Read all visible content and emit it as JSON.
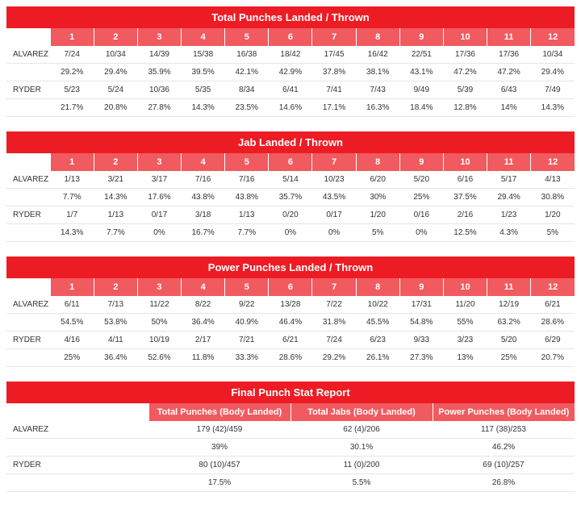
{
  "colors": {
    "title_bg": "#ed1c24",
    "header_bg": "#f15a5f",
    "row_border": "#e5e5e5",
    "text": "#333333",
    "bg": "#ffffff"
  },
  "rounds": [
    "1",
    "2",
    "3",
    "4",
    "5",
    "6",
    "7",
    "8",
    "9",
    "10",
    "11",
    "12"
  ],
  "tables": [
    {
      "title": "Total Punches Landed / Thrown",
      "fighters": [
        {
          "name": "ALVAREZ",
          "vals": [
            "7/24",
            "10/34",
            "14/39",
            "15/38",
            "16/38",
            "18/42",
            "17/45",
            "16/42",
            "22/51",
            "17/36",
            "17/36",
            "10/34"
          ],
          "pcts": [
            "29.2%",
            "29.4%",
            "35.9%",
            "39.5%",
            "42.1%",
            "42.9%",
            "37.8%",
            "38.1%",
            "43.1%",
            "47.2%",
            "47.2%",
            "29.4%"
          ]
        },
        {
          "name": "RYDER",
          "vals": [
            "5/23",
            "5/24",
            "10/36",
            "5/35",
            "8/34",
            "6/41",
            "7/41",
            "7/43",
            "9/49",
            "5/39",
            "6/43",
            "7/49"
          ],
          "pcts": [
            "21.7%",
            "20.8%",
            "27.8%",
            "14.3%",
            "23.5%",
            "14.6%",
            "17.1%",
            "16.3%",
            "18.4%",
            "12.8%",
            "14%",
            "14.3%"
          ]
        }
      ]
    },
    {
      "title": "Jab Landed / Thrown",
      "fighters": [
        {
          "name": "ALVAREZ",
          "vals": [
            "1/13",
            "3/21",
            "3/17",
            "7/16",
            "7/16",
            "5/14",
            "10/23",
            "6/20",
            "5/20",
            "6/16",
            "5/17",
            "4/13"
          ],
          "pcts": [
            "7.7%",
            "14.3%",
            "17.6%",
            "43.8%",
            "43.8%",
            "35.7%",
            "43.5%",
            "30%",
            "25%",
            "37.5%",
            "29.4%",
            "30.8%"
          ]
        },
        {
          "name": "RYDER",
          "vals": [
            "1/7",
            "1/13",
            "0/17",
            "3/18",
            "1/13",
            "0/20",
            "0/17",
            "1/20",
            "0/16",
            "2/16",
            "1/23",
            "1/20"
          ],
          "pcts": [
            "14.3%",
            "7.7%",
            "0%",
            "16.7%",
            "7.7%",
            "0%",
            "0%",
            "5%",
            "0%",
            "12.5%",
            "4.3%",
            "5%"
          ]
        }
      ]
    },
    {
      "title": "Power Punches Landed / Thrown",
      "fighters": [
        {
          "name": "ALVAREZ",
          "vals": [
            "6/11",
            "7/13",
            "11/22",
            "8/22",
            "9/22",
            "13/28",
            "7/22",
            "10/22",
            "17/31",
            "11/20",
            "12/19",
            "6/21"
          ],
          "pcts": [
            "54.5%",
            "53.8%",
            "50%",
            "36.4%",
            "40.9%",
            "46.4%",
            "31.8%",
            "45.5%",
            "54.8%",
            "55%",
            "63.2%",
            "28.6%"
          ]
        },
        {
          "name": "RYDER",
          "vals": [
            "4/16",
            "4/11",
            "10/19",
            "2/17",
            "7/21",
            "6/21",
            "7/24",
            "6/23",
            "9/33",
            "3/23",
            "5/20",
            "6/29"
          ],
          "pcts": [
            "25%",
            "36.4%",
            "52.6%",
            "11.8%",
            "33.3%",
            "28.6%",
            "29.2%",
            "26.1%",
            "27.3%",
            "13%",
            "25%",
            "20.7%"
          ]
        }
      ]
    }
  ],
  "final": {
    "title": "Final Punch Stat Report",
    "headers": [
      "Total Punches (Body Landed)",
      "Total Jabs (Body Landed)",
      "Power Punches (Body Landed)"
    ],
    "fighters": [
      {
        "name": "ALVAREZ",
        "vals": [
          "179 (42)/459",
          "62 (4)/206",
          "117 (38)/253"
        ],
        "pcts": [
          "39%",
          "30.1%",
          "46.2%"
        ]
      },
      {
        "name": "RYDER",
        "vals": [
          "80 (10)/457",
          "11 (0)/200",
          "69 (10)/257"
        ],
        "pcts": [
          "17.5%",
          "5.5%",
          "26.8%"
        ]
      }
    ]
  }
}
